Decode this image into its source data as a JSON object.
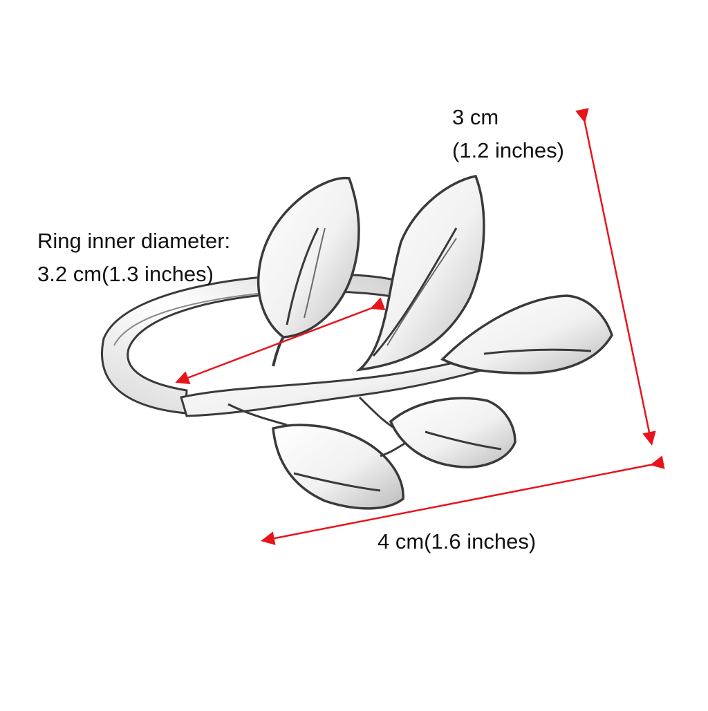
{
  "image": {
    "subject": "silver leaf branch napkin ring",
    "colors": {
      "background": "#ffffff",
      "arrow": "#e8141b",
      "metal_outline": "#3a3a3a",
      "metal_fill": "#f4f4f4",
      "metal_shadow": "#bdbdbd"
    }
  },
  "annotations": {
    "ring_diameter": {
      "line1": "Ring inner diameter:",
      "line2": "3.2 cm(1.3 inches)"
    },
    "height": {
      "line1": "3 cm",
      "line2": "(1.2 inches)"
    },
    "width": {
      "line1": "4 cm(1.6 inches)"
    }
  }
}
